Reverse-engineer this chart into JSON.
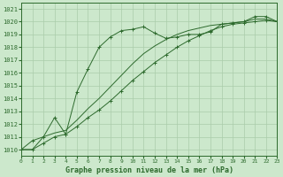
{
  "title": "Graphe pression niveau de la mer (hPa)",
  "bg_color": "#cce8cc",
  "grid_color": "#aaccaa",
  "line_color": "#2d6a2d",
  "xlim": [
    0,
    23
  ],
  "ylim": [
    1009.5,
    1021.5
  ],
  "xticks": [
    0,
    1,
    2,
    3,
    4,
    5,
    6,
    7,
    8,
    9,
    10,
    11,
    12,
    13,
    14,
    15,
    16,
    17,
    18,
    19,
    20,
    21,
    22,
    23
  ],
  "yticks": [
    1010,
    1011,
    1012,
    1013,
    1014,
    1015,
    1016,
    1017,
    1018,
    1019,
    1020,
    1021
  ],
  "line_diag_x": [
    0,
    1,
    2,
    3,
    4,
    5,
    6,
    7,
    8,
    9,
    10,
    11,
    12,
    13,
    14,
    15,
    16,
    17,
    18,
    19,
    20,
    21,
    22,
    23
  ],
  "line_diag_y": [
    1010.0,
    1010.0,
    1010.5,
    1011.0,
    1011.2,
    1011.8,
    1012.5,
    1013.1,
    1013.8,
    1014.6,
    1015.4,
    1016.1,
    1016.8,
    1017.4,
    1018.0,
    1018.5,
    1018.9,
    1019.3,
    1019.6,
    1019.8,
    1019.9,
    1020.0,
    1020.1,
    1020.0
  ],
  "line_peak_x": [
    0,
    1,
    2,
    3,
    4,
    5,
    6,
    7,
    8,
    9,
    10,
    11,
    12,
    13,
    14,
    15,
    16,
    17,
    18,
    19,
    20,
    21,
    22,
    23
  ],
  "line_peak_y": [
    1010.0,
    1010.7,
    1011.0,
    1012.5,
    1011.2,
    1014.5,
    1016.3,
    1018.0,
    1018.8,
    1019.3,
    1019.4,
    1019.6,
    1019.1,
    1018.7,
    1018.8,
    1019.0,
    1019.0,
    1019.2,
    1019.8,
    1019.9,
    1020.0,
    1020.4,
    1020.4,
    1020.0
  ],
  "line_mid_x": [
    0,
    1,
    2,
    3,
    4,
    5,
    6,
    7,
    8,
    9,
    10,
    11,
    12,
    13,
    14,
    15,
    16,
    17,
    18,
    19,
    20,
    21,
    22,
    23
  ],
  "line_mid_y": [
    1010.0,
    1010.0,
    1011.0,
    1011.3,
    1011.5,
    1012.3,
    1013.2,
    1014.0,
    1014.9,
    1015.8,
    1016.7,
    1017.5,
    1018.1,
    1018.6,
    1019.0,
    1019.3,
    1019.5,
    1019.7,
    1019.8,
    1019.9,
    1020.0,
    1020.2,
    1020.2,
    1020.0
  ]
}
